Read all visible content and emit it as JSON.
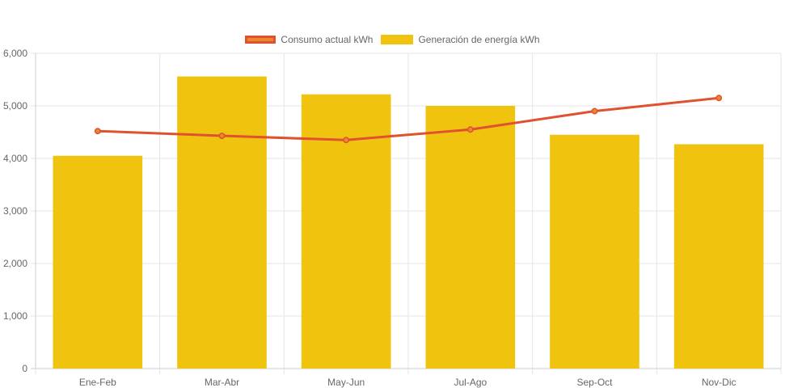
{
  "chart_data": {
    "type": "bar",
    "title": "",
    "xlabel": "",
    "ylabel": "",
    "ylim": [
      0,
      6000
    ],
    "yticks": [
      "0",
      "1,000",
      "2,000",
      "3,000",
      "4,000",
      "5,000",
      "6,000"
    ],
    "ytick_values": [
      0,
      1000,
      2000,
      3000,
      4000,
      5000,
      6000
    ],
    "categories": [
      "Ene-Feb",
      "Mar-Abr",
      "May-Jun",
      "Jul-Ago",
      "Sep-Oct",
      "Nov-Dic"
    ],
    "grid": true,
    "legend_position": "top-center",
    "series": [
      {
        "name": "Consumo actual kWh",
        "type": "line",
        "color": "#e0512f",
        "fill_color": "#e8892b",
        "values": [
          4520,
          4430,
          4350,
          4550,
          4900,
          5150
        ]
      },
      {
        "name": "Generación de energía kWh",
        "type": "bar",
        "color": "#f0c40e",
        "values": [
          4050,
          5560,
          5220,
          5000,
          4450,
          4270
        ]
      }
    ]
  }
}
